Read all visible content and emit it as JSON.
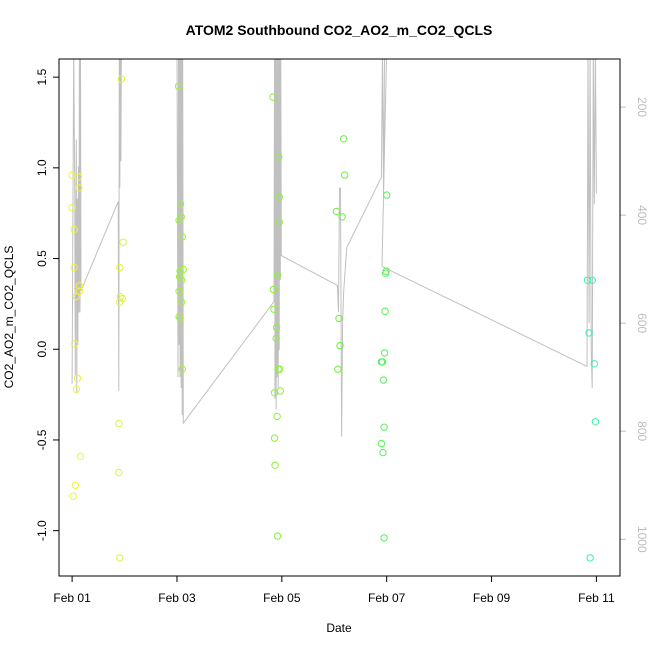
{
  "chart_data": {
    "type": "scatter",
    "title": "ATOM2 Southbound CO2_AO2_m_CO2_QCLS",
    "xlabel": "Date",
    "ylabel": "CO2_AO2_m_CO2_QCLS",
    "x_unit": "days since Feb 01",
    "xlim": [
      -0.25,
      10.45
    ],
    "ylim": [
      -1.25,
      1.6
    ],
    "x_ticks": [
      {
        "value": 0,
        "label": "Feb 01"
      },
      {
        "value": 2,
        "label": "Feb 03"
      },
      {
        "value": 4,
        "label": "Feb 05"
      },
      {
        "value": 6,
        "label": "Feb 07"
      },
      {
        "value": 8,
        "label": "Feb 09"
      },
      {
        "value": 10,
        "label": "Feb 11"
      }
    ],
    "y_ticks": [
      {
        "value": -1.0,
        "label": "-1.0"
      },
      {
        "value": -0.5,
        "label": "-0.5"
      },
      {
        "value": 0.0,
        "label": "0.0"
      },
      {
        "value": 0.5,
        "label": "0.5"
      },
      {
        "value": 1.0,
        "label": "1.0"
      },
      {
        "value": 1.5,
        "label": "1.5"
      }
    ],
    "y2_ticks": [
      {
        "value": 200,
        "label": "200"
      },
      {
        "value": 400,
        "label": "400"
      },
      {
        "value": 600,
        "label": "600"
      },
      {
        "value": 800,
        "label": "800"
      },
      {
        "value": 1000,
        "label": "1000"
      }
    ],
    "y2lim_top_bottom": [
      111,
      1068
    ],
    "grid": false,
    "points": [
      {
        "x": 0.0,
        "y": 0.96,
        "c": "#eef23a"
      },
      {
        "x": 0.0,
        "y": 0.78,
        "c": "#eef23a"
      },
      {
        "x": 0.04,
        "y": 0.66,
        "c": "#eef23a"
      },
      {
        "x": 0.04,
        "y": 0.45,
        "c": "#eef23a"
      },
      {
        "x": 0.05,
        "y": 0.03,
        "c": "#eef23a"
      },
      {
        "x": 0.02,
        "y": -0.81,
        "c": "#eef23a"
      },
      {
        "x": 0.06,
        "y": -0.75,
        "c": "#eef23a"
      },
      {
        "x": 0.08,
        "y": -0.22,
        "c": "#eef23a"
      },
      {
        "x": 0.08,
        "y": 0.29,
        "c": "#eef23a"
      },
      {
        "x": 0.1,
        "y": -0.16,
        "c": "#eef23a"
      },
      {
        "x": 0.12,
        "y": 0.95,
        "c": "#eef23a"
      },
      {
        "x": 0.13,
        "y": 0.89,
        "c": "#eef23a"
      },
      {
        "x": 0.14,
        "y": 0.35,
        "c": "#eef23a"
      },
      {
        "x": 0.14,
        "y": 0.32,
        "c": "#eef23a"
      },
      {
        "x": 0.16,
        "y": -0.59,
        "c": "#eef23a"
      },
      {
        "x": 0.89,
        "y": -0.41,
        "c": "#dff23a"
      },
      {
        "x": 0.89,
        "y": -0.68,
        "c": "#dff23a"
      },
      {
        "x": 0.91,
        "y": -1.15,
        "c": "#dff23a"
      },
      {
        "x": 0.91,
        "y": 0.45,
        "c": "#dff23a"
      },
      {
        "x": 0.91,
        "y": 0.26,
        "c": "#dff23a"
      },
      {
        "x": 0.92,
        "y": 0.29,
        "c": "#dff23a"
      },
      {
        "x": 0.94,
        "y": 1.49,
        "c": "#dff23a"
      },
      {
        "x": 0.96,
        "y": 0.28,
        "c": "#dff23a"
      },
      {
        "x": 0.97,
        "y": 0.59,
        "c": "#dff23a"
      },
      {
        "x": 2.03,
        "y": 1.45,
        "c": "#9cf23a"
      },
      {
        "x": 2.04,
        "y": 0.18,
        "c": "#9cf23a"
      },
      {
        "x": 2.04,
        "y": 0.71,
        "c": "#9cf23a"
      },
      {
        "x": 2.04,
        "y": 0.32,
        "c": "#9cf23a"
      },
      {
        "x": 2.05,
        "y": 0.4,
        "c": "#9cf23a"
      },
      {
        "x": 2.06,
        "y": 0.43,
        "c": "#9cf23a"
      },
      {
        "x": 2.06,
        "y": 0.17,
        "c": "#9cf23a"
      },
      {
        "x": 2.07,
        "y": 0.8,
        "c": "#9cf23a"
      },
      {
        "x": 2.08,
        "y": 0.73,
        "c": "#9cf23a"
      },
      {
        "x": 2.09,
        "y": 0.38,
        "c": "#9cf23a"
      },
      {
        "x": 2.09,
        "y": 0.26,
        "c": "#9cf23a"
      },
      {
        "x": 2.1,
        "y": 0.62,
        "c": "#9cf23a"
      },
      {
        "x": 2.1,
        "y": -0.11,
        "c": "#9cf23a"
      },
      {
        "x": 2.12,
        "y": 0.44,
        "c": "#9cf23a"
      },
      {
        "x": 3.83,
        "y": 1.39,
        "c": "#8af23a"
      },
      {
        "x": 3.84,
        "y": 0.33,
        "c": "#8af23a"
      },
      {
        "x": 3.85,
        "y": 0.22,
        "c": "#8af23a"
      },
      {
        "x": 3.86,
        "y": -0.24,
        "c": "#8af23a"
      },
      {
        "x": 3.86,
        "y": -0.49,
        "c": "#8af23a"
      },
      {
        "x": 3.87,
        "y": -0.64,
        "c": "#8af23a"
      },
      {
        "x": 3.89,
        "y": 0.06,
        "c": "#8af23a"
      },
      {
        "x": 3.9,
        "y": 0.12,
        "c": "#8af23a"
      },
      {
        "x": 3.91,
        "y": -0.37,
        "c": "#8af23a"
      },
      {
        "x": 3.92,
        "y": -1.03,
        "c": "#8af23a"
      },
      {
        "x": 3.92,
        "y": 0.41,
        "c": "#8af23a"
      },
      {
        "x": 3.93,
        "y": -0.11,
        "c": "#8af23a"
      },
      {
        "x": 3.94,
        "y": 1.06,
        "c": "#8af23a"
      },
      {
        "x": 3.95,
        "y": 0.84,
        "c": "#8af23a"
      },
      {
        "x": 3.95,
        "y": 0.7,
        "c": "#8af23a"
      },
      {
        "x": 3.96,
        "y": -0.11,
        "c": "#8af23a"
      },
      {
        "x": 3.97,
        "y": -0.23,
        "c": "#8af23a"
      },
      {
        "x": 5.04,
        "y": 0.76,
        "c": "#6af23a"
      },
      {
        "x": 5.07,
        "y": -0.11,
        "c": "#6af23a"
      },
      {
        "x": 5.09,
        "y": 0.17,
        "c": "#6af23a"
      },
      {
        "x": 5.11,
        "y": 0.02,
        "c": "#6af23a"
      },
      {
        "x": 5.15,
        "y": 0.73,
        "c": "#6af23a"
      },
      {
        "x": 5.18,
        "y": 1.16,
        "c": "#6af23a"
      },
      {
        "x": 5.2,
        "y": 0.96,
        "c": "#6af23a"
      },
      {
        "x": 5.9,
        "y": -0.07,
        "c": "#5af25a"
      },
      {
        "x": 5.9,
        "y": -0.52,
        "c": "#5af25a"
      },
      {
        "x": 5.92,
        "y": -0.07,
        "c": "#5af25a"
      },
      {
        "x": 5.93,
        "y": -0.57,
        "c": "#5af25a"
      },
      {
        "x": 5.94,
        "y": -0.17,
        "c": "#5af25a"
      },
      {
        "x": 5.95,
        "y": -0.43,
        "c": "#5af25a"
      },
      {
        "x": 5.95,
        "y": -1.04,
        "c": "#5af25a"
      },
      {
        "x": 5.96,
        "y": -0.02,
        "c": "#5af25a"
      },
      {
        "x": 5.97,
        "y": 0.21,
        "c": "#5af25a"
      },
      {
        "x": 5.98,
        "y": 0.42,
        "c": "#5af25a"
      },
      {
        "x": 5.99,
        "y": 0.43,
        "c": "#5af25a"
      },
      {
        "x": 6.0,
        "y": 0.85,
        "c": "#5af25a"
      },
      {
        "x": 9.83,
        "y": 0.38,
        "c": "#3af2a6"
      },
      {
        "x": 9.86,
        "y": 0.09,
        "c": "#3af2a6"
      },
      {
        "x": 9.88,
        "y": -1.15,
        "c": "#3af2a6"
      },
      {
        "x": 9.92,
        "y": 0.38,
        "c": "#3af2a6"
      },
      {
        "x": 9.96,
        "y": -0.08,
        "c": "#3af2a6"
      },
      {
        "x": 9.98,
        "y": -0.4,
        "c": "#3af2a6"
      }
    ],
    "line": {
      "axis": "right",
      "color": "#c0c0c0",
      "values": [
        [
          0.0,
          712
        ],
        [
          0.03,
          90
        ],
        [
          0.05,
          340
        ],
        [
          0.06,
          698
        ],
        [
          0.07,
          430
        ],
        [
          0.08,
          260
        ],
        [
          0.09,
          730
        ],
        [
          0.1,
          370
        ],
        [
          0.11,
          640
        ],
        [
          0.12,
          310
        ],
        [
          0.13,
          580
        ],
        [
          0.14,
          90
        ],
        [
          0.15,
          580
        ],
        [
          0.16,
          90
        ],
        [
          0.17,
          540
        ],
        [
          0.88,
          375
        ],
        [
          0.89,
          725
        ],
        [
          0.9,
          90
        ],
        [
          0.91,
          350
        ],
        [
          0.92,
          90
        ],
        [
          0.93,
          300
        ],
        [
          0.94,
          90
        ],
        [
          2.0,
          90
        ],
        [
          2.02,
          700
        ],
        [
          2.03,
          90
        ],
        [
          2.04,
          640
        ],
        [
          2.05,
          90
        ],
        [
          2.06,
          700
        ],
        [
          2.07,
          90
        ],
        [
          2.08,
          720
        ],
        [
          2.09,
          90
        ],
        [
          2.1,
          770
        ],
        [
          2.11,
          90
        ],
        [
          2.12,
          785
        ],
        [
          3.85,
          560
        ],
        [
          3.86,
          90
        ],
        [
          3.87,
          740
        ],
        [
          3.88,
          90
        ],
        [
          3.89,
          760
        ],
        [
          3.9,
          90
        ],
        [
          3.91,
          700
        ],
        [
          3.92,
          90
        ],
        [
          3.93,
          720
        ],
        [
          3.94,
          90
        ],
        [
          3.95,
          650
        ],
        [
          3.96,
          90
        ],
        [
          3.97,
          520
        ],
        [
          3.98,
          90
        ],
        [
          3.99,
          475
        ],
        [
          5.06,
          530
        ],
        [
          5.08,
          580
        ],
        [
          5.1,
          350
        ],
        [
          5.12,
          350
        ],
        [
          5.14,
          810
        ],
        [
          5.16,
          600
        ],
        [
          5.18,
          540
        ],
        [
          5.24,
          460
        ],
        [
          5.9,
          330
        ],
        [
          5.92,
          90
        ],
        [
          5.94,
          360
        ],
        [
          5.96,
          90
        ],
        [
          5.98,
          90
        ],
        [
          6.0,
          90
        ],
        [
          5.91,
          495
        ],
        [
          9.82,
          680
        ],
        [
          9.84,
          90
        ],
        [
          9.86,
          600
        ],
        [
          9.88,
          90
        ],
        [
          9.9,
          650
        ],
        [
          9.92,
          720
        ],
        [
          9.94,
          90
        ],
        [
          9.96,
          380
        ],
        [
          9.98,
          90
        ],
        [
          10.0,
          360
        ]
      ]
    }
  }
}
